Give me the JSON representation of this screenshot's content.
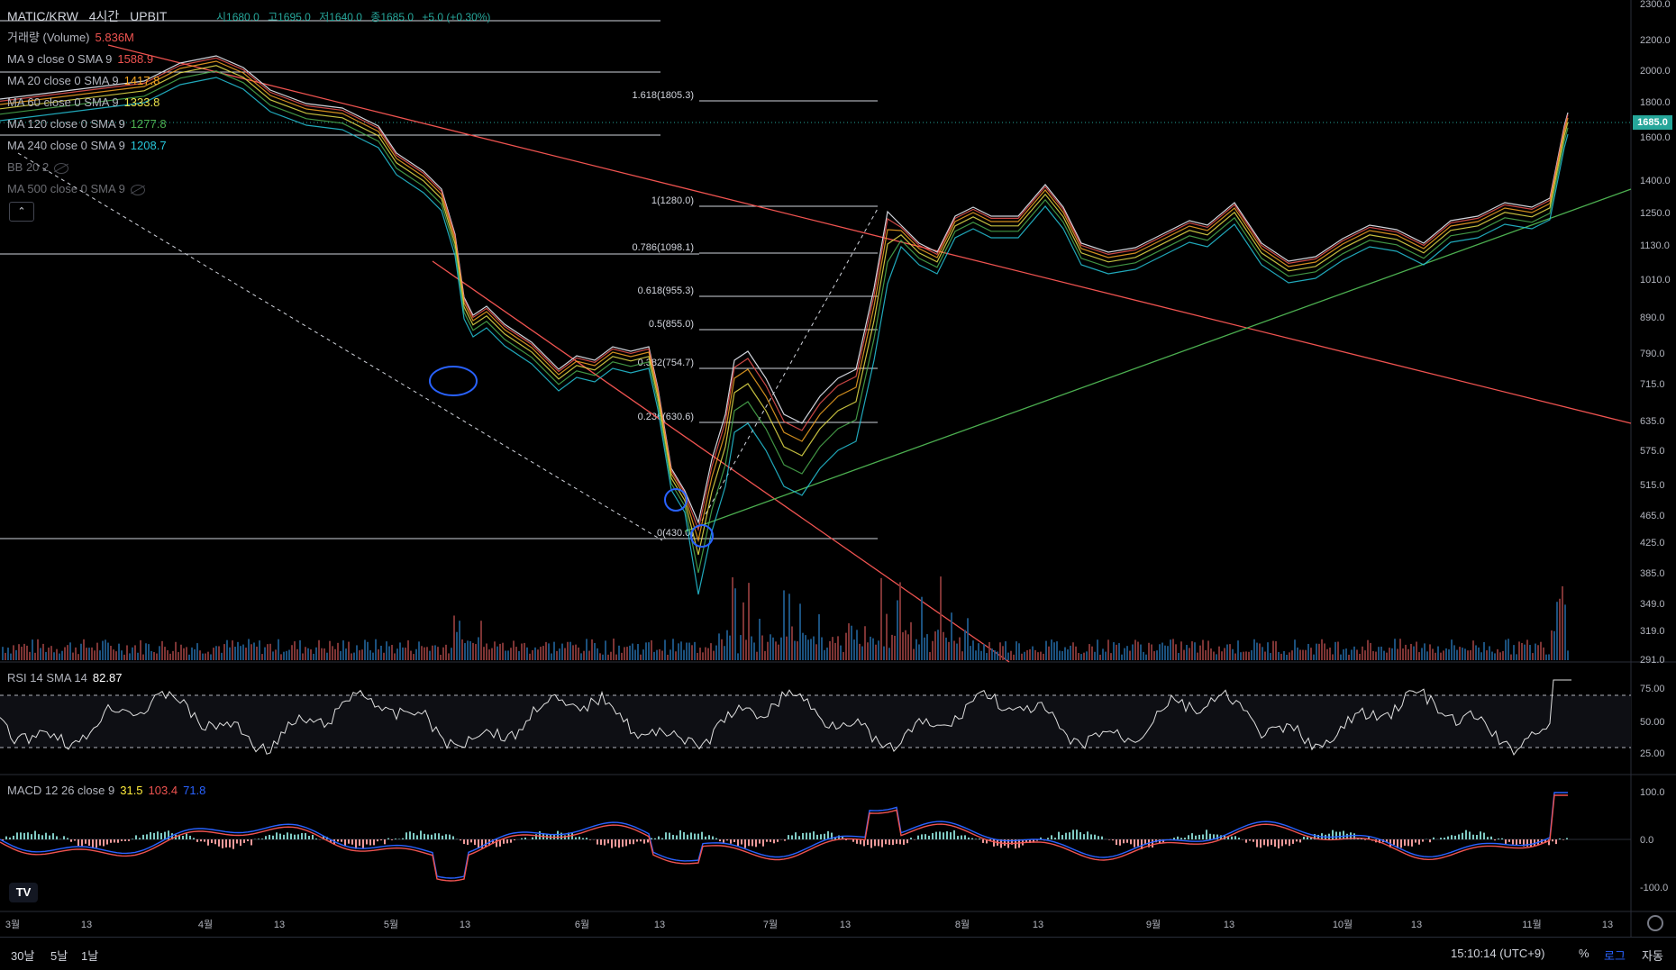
{
  "header": {
    "symbol": "MATIC/KRW",
    "interval": "4시간",
    "exchange": "UPBIT",
    "open": "시1680.0",
    "high": "고1695.0",
    "low": "저1640.0",
    "close": "종1685.0",
    "change": "+5.0 (+0.30%)"
  },
  "indicators": [
    {
      "name": "거래량 (Volume)",
      "value": "5.836M",
      "color": "#ef5350"
    },
    {
      "name": "MA 9 close 0 SMA 9",
      "value": "1588.9",
      "color": "#ef5350"
    },
    {
      "name": "MA 20 close 0 SMA 9",
      "value": "1417.8",
      "color": "#f5a623"
    },
    {
      "name": "MA 60 close 0 SMA 9",
      "value": "1333.8",
      "color": "#e8e04a"
    },
    {
      "name": "MA 120 close 0 SMA 9",
      "value": "1277.8",
      "color": "#4caf50"
    },
    {
      "name": "MA 240 close 0 SMA 9",
      "value": "1208.7",
      "color": "#26c6da"
    },
    {
      "name": "BB 20 2",
      "value": "",
      "color": "#787b86"
    },
    {
      "name": "MA 500 close 0 SMA 9",
      "value": "",
      "color": "#787b86"
    }
  ],
  "current_price": "1685.0",
  "price_axis": [
    "2300.0",
    "2200.0",
    "2000.0",
    "1800.0",
    "1600.0",
    "1400.0",
    "1250.0",
    "1130.0",
    "1010.0",
    "890.0",
    "790.0",
    "715.0",
    "635.0",
    "575.0",
    "515.0",
    "465.0",
    "425.0",
    "385.0",
    "349.0",
    "319.0",
    "291.0"
  ],
  "fib_levels": [
    {
      "label": "1.618(1805.3)"
    },
    {
      "label": "1(1280.0)"
    },
    {
      "label": "0.786(1098.1)"
    },
    {
      "label": "0.618(955.3)"
    },
    {
      "label": "0.5(855.0)"
    },
    {
      "label": "0.382(754.7)"
    },
    {
      "label": "0.236(630.6)"
    },
    {
      "label": "0(430.0)"
    }
  ],
  "rsi": {
    "label": "RSI 14 SMA 14",
    "value": "82.87",
    "axis": [
      "75.00",
      "50.00",
      "25.00"
    ]
  },
  "macd": {
    "label": "MACD 12 26 close 9",
    "v1": "31.5",
    "v2": "103.4",
    "v3": "71.8",
    "axis": [
      "100.0",
      "0.0",
      "-100.0"
    ]
  },
  "time_axis": [
    "3월",
    "13",
    "4월",
    "13",
    "5월",
    "13",
    "6월",
    "13",
    "7월",
    "13",
    "8월",
    "13",
    "9월",
    "13",
    "10월",
    "13",
    "11월",
    "13"
  ],
  "bottom": {
    "range_30d": "30날",
    "range_5d": "5날",
    "range_1d": "1날",
    "clock": "15:10:14 (UTC+9)",
    "pct": "%",
    "log": "로그",
    "auto": "자동"
  },
  "colors": {
    "up": "#26a69a",
    "down": "#ef5350",
    "macd": "#2962ff",
    "signal": "#ef5350"
  }
}
